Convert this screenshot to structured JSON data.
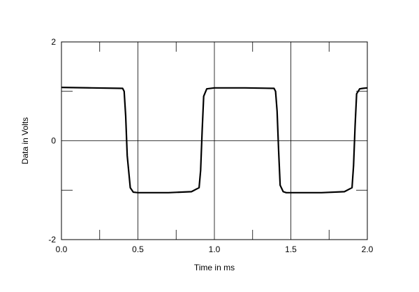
{
  "chart_data": {
    "type": "line",
    "title": "",
    "xlabel": "Time in ms",
    "ylabel": "Data in Volts",
    "xlim": [
      0.0,
      2.0
    ],
    "ylim": [
      -2,
      2
    ],
    "x_ticks": [
      0.0,
      0.5,
      1.0,
      1.5,
      2.0
    ],
    "x_tick_labels": [
      "0.0",
      "0.5",
      "1.0",
      "1.5",
      "2.0"
    ],
    "y_ticks": [
      -2,
      0,
      2
    ],
    "y_tick_labels": [
      "-2",
      "0",
      "2"
    ],
    "grid": true,
    "series": [
      {
        "color": "#000000",
        "x": [
          0.0,
          0.2,
          0.4,
          0.41,
          0.42,
          0.43,
          0.45,
          0.47,
          0.5,
          0.7,
          0.85,
          0.9,
          0.91,
          0.92,
          0.93,
          0.95,
          1.0,
          1.2,
          1.39,
          1.4,
          1.41,
          1.42,
          1.43,
          1.45,
          1.47,
          1.5,
          1.7,
          1.85,
          1.9,
          1.91,
          1.92,
          1.93,
          1.95,
          1.97,
          2.0
        ],
        "values": [
          1.08,
          1.07,
          1.06,
          1.0,
          0.5,
          -0.3,
          -0.95,
          -1.04,
          -1.05,
          -1.05,
          -1.03,
          -0.95,
          -0.6,
          0.2,
          0.9,
          1.05,
          1.07,
          1.07,
          1.06,
          1.0,
          0.6,
          -0.2,
          -0.9,
          -1.03,
          -1.05,
          -1.05,
          -1.05,
          -1.03,
          -0.95,
          -0.5,
          0.3,
          0.95,
          1.05,
          1.06,
          1.07
        ]
      }
    ]
  }
}
